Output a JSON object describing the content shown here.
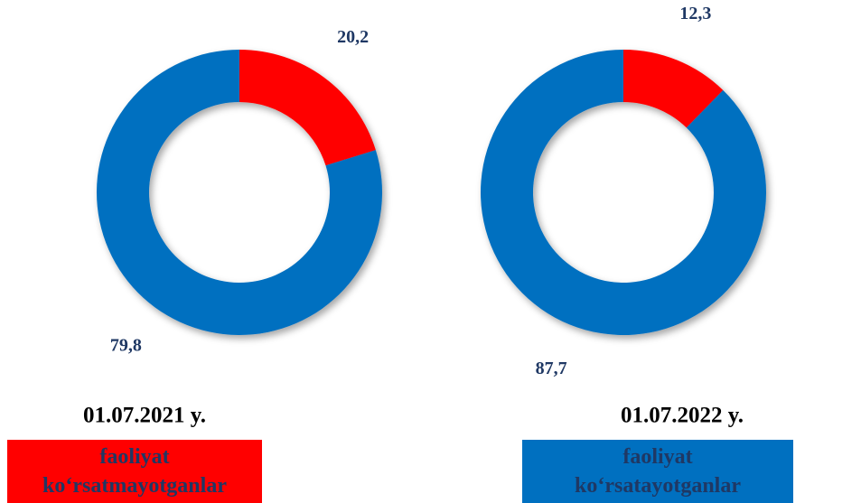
{
  "chart_data": [
    {
      "type": "pie",
      "title": "01.07.2021 y.",
      "categories": [
        "faoliyat ko‘rsatmayotganlar",
        "faoliyat ko‘rsatayotganlar"
      ],
      "values": [
        20.2,
        79.8
      ],
      "value_labels": [
        "20,2",
        "79,8"
      ],
      "colors": [
        "#ff0000",
        "#0070c0"
      ]
    },
    {
      "type": "pie",
      "title": "01.07.2022 y.",
      "categories": [
        "faoliyat ko‘rsatmayotganlar",
        "faoliyat ko‘rsatayotganlar"
      ],
      "values": [
        12.3,
        87.7
      ],
      "value_labels": [
        "12,3",
        "87,7"
      ],
      "colors": [
        "#ff0000",
        "#0070c0"
      ]
    }
  ]
}
